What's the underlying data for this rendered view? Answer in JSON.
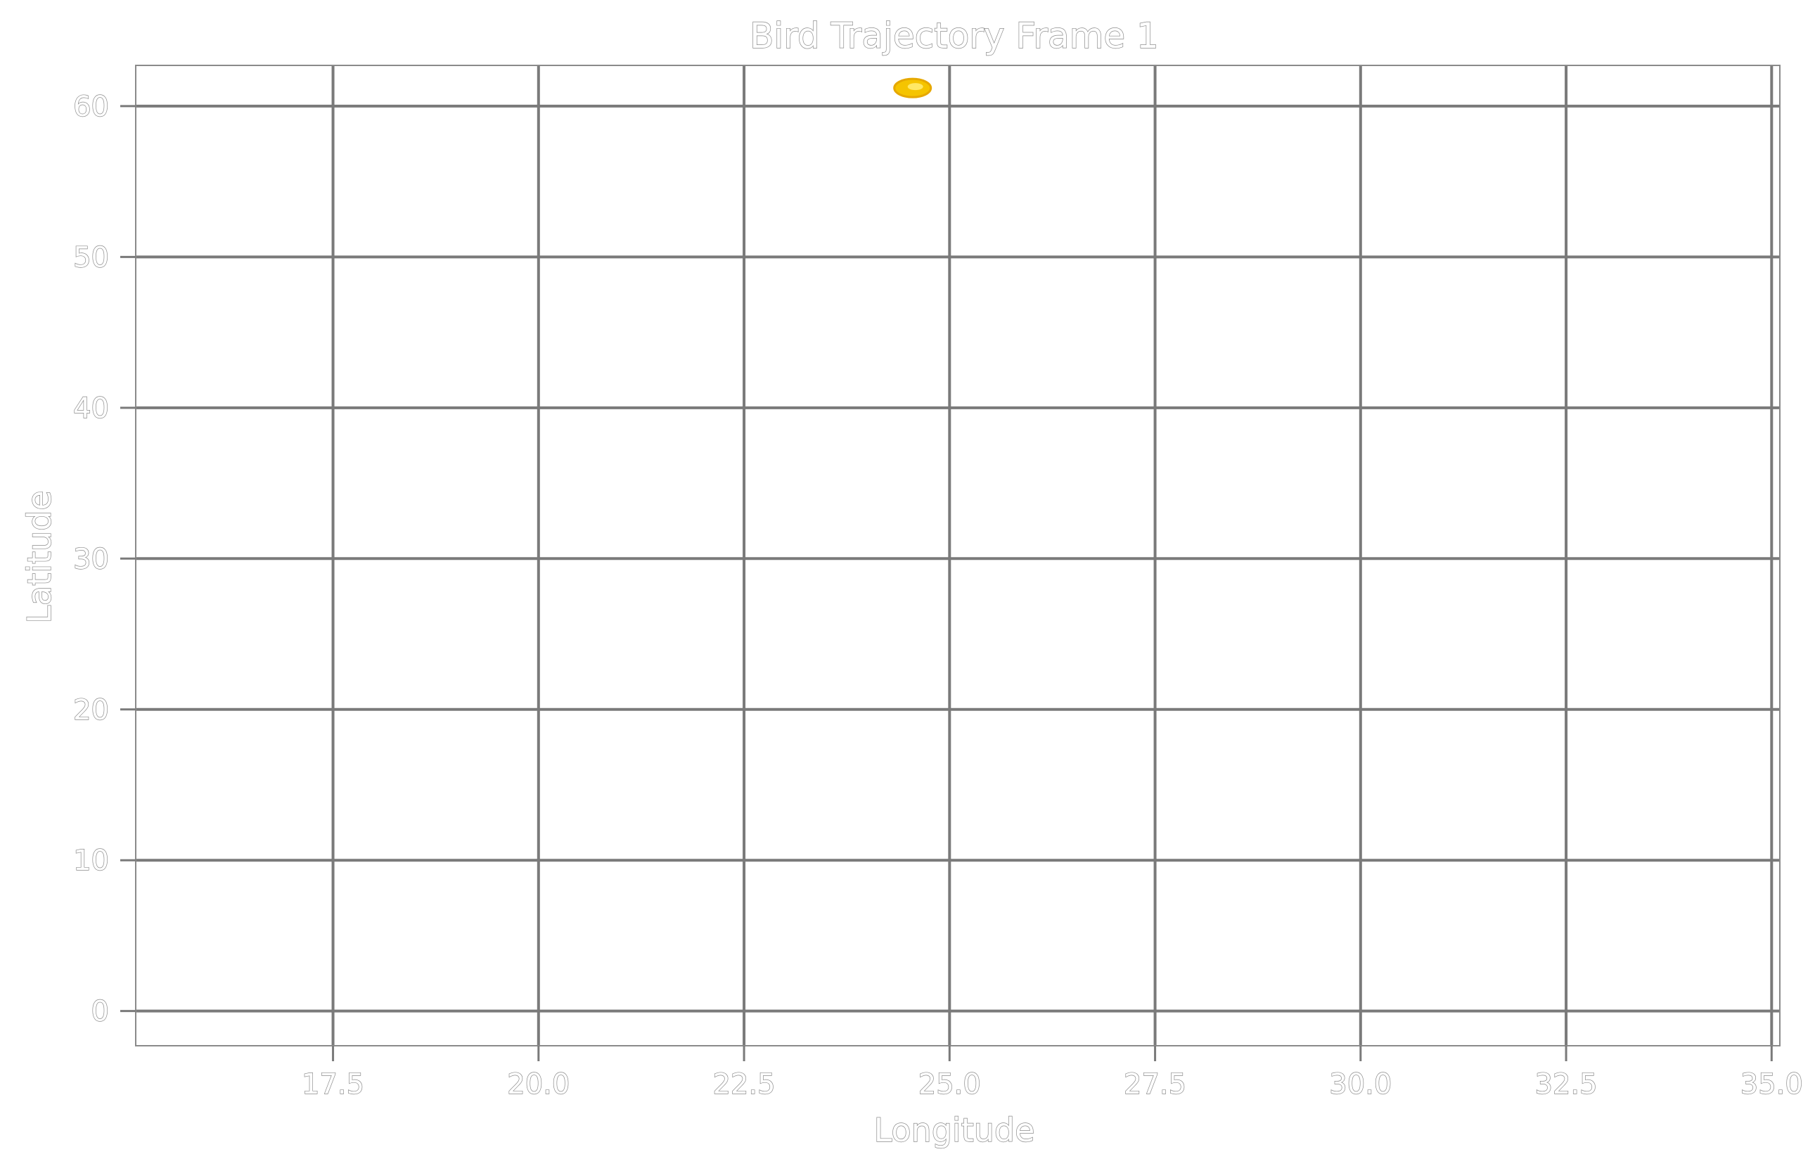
{
  "chart_data": {
    "type": "scatter",
    "title": "Bird Trajectory Frame 1",
    "xlabel": "Longitude",
    "ylabel": "Latitude",
    "xlim": [
      15.1,
      35.1
    ],
    "ylim": [
      -2.3,
      62.7
    ],
    "xticks": [
      17.5,
      20.0,
      22.5,
      25.0,
      27.5,
      30.0,
      32.5,
      35.0
    ],
    "xtick_labels": [
      "17.5",
      "20.0",
      "22.5",
      "25.0",
      "27.5",
      "30.0",
      "32.5",
      "35.0"
    ],
    "yticks": [
      0,
      10,
      20,
      30,
      40,
      50,
      60
    ],
    "ytick_labels": [
      "0",
      "10",
      "20",
      "30",
      "40",
      "50",
      "60"
    ],
    "grid": true,
    "series": [
      {
        "points": [
          {
            "x": 24.55,
            "y": 61.2
          }
        ],
        "color": "#f5c400",
        "edge_color": "#e6a800"
      }
    ]
  }
}
